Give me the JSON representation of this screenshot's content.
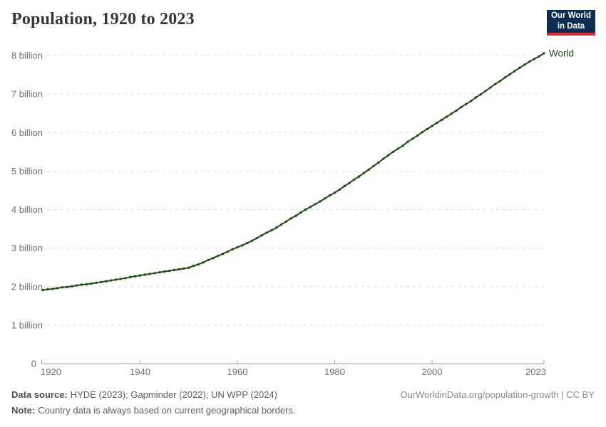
{
  "header": {
    "title": "Population, 1920 to 2023"
  },
  "logo": {
    "line1": "Our World",
    "line2": "in Data",
    "bg_color": "#0d2d55",
    "accent_color": "#dc2e32"
  },
  "chart_data": {
    "type": "line",
    "title": "Population, 1920 to 2023",
    "entity_label": "World",
    "line_color": "#1f4f15",
    "grid": true,
    "legend_position": "end-of-line",
    "xlim": [
      1920,
      2023
    ],
    "ylim": [
      0,
      8.6
    ],
    "x_ticks": [
      1920,
      1940,
      1960,
      1980,
      2000,
      2023
    ],
    "y_ticks": [
      {
        "value": 0,
        "label": "0"
      },
      {
        "value": 1,
        "label": "1 billion"
      },
      {
        "value": 2,
        "label": "2 billion"
      },
      {
        "value": 3,
        "label": "3 billion"
      },
      {
        "value": 4,
        "label": "4 billion"
      },
      {
        "value": 5,
        "label": "5 billion"
      },
      {
        "value": 6,
        "label": "6 billion"
      },
      {
        "value": 7,
        "label": "7 billion"
      },
      {
        "value": 8,
        "label": "8 billion"
      }
    ],
    "ylabel": "",
    "xlabel": "",
    "years": [
      1920,
      1921,
      1922,
      1923,
      1924,
      1925,
      1926,
      1927,
      1928,
      1929,
      1930,
      1931,
      1932,
      1933,
      1934,
      1935,
      1936,
      1937,
      1938,
      1939,
      1940,
      1941,
      1942,
      1943,
      1944,
      1945,
      1946,
      1947,
      1948,
      1949,
      1950,
      1951,
      1952,
      1953,
      1954,
      1955,
      1956,
      1957,
      1958,
      1959,
      1960,
      1961,
      1962,
      1963,
      1964,
      1965,
      1966,
      1967,
      1968,
      1969,
      1970,
      1971,
      1972,
      1973,
      1974,
      1975,
      1976,
      1977,
      1978,
      1979,
      1980,
      1981,
      1982,
      1983,
      1984,
      1985,
      1986,
      1987,
      1988,
      1989,
      1990,
      1991,
      1992,
      1993,
      1994,
      1995,
      1996,
      1997,
      1998,
      1999,
      2000,
      2001,
      2002,
      2003,
      2004,
      2005,
      2006,
      2007,
      2008,
      2009,
      2010,
      2011,
      2012,
      2013,
      2014,
      2015,
      2016,
      2017,
      2018,
      2019,
      2020,
      2021,
      2022,
      2023
    ],
    "values_billions": [
      1.91,
      1.93,
      1.94,
      1.96,
      1.98,
      1.99,
      2.01,
      2.03,
      2.05,
      2.06,
      2.08,
      2.1,
      2.12,
      2.14,
      2.16,
      2.18,
      2.2,
      2.22,
      2.25,
      2.27,
      2.29,
      2.31,
      2.33,
      2.35,
      2.37,
      2.39,
      2.41,
      2.43,
      2.45,
      2.47,
      2.49,
      2.54,
      2.58,
      2.63,
      2.69,
      2.74,
      2.8,
      2.85,
      2.91,
      2.97,
      3.02,
      3.07,
      3.13,
      3.19,
      3.26,
      3.33,
      3.4,
      3.46,
      3.53,
      3.61,
      3.69,
      3.77,
      3.84,
      3.92,
      4.0,
      4.07,
      4.14,
      4.21,
      4.29,
      4.37,
      4.44,
      4.52,
      4.61,
      4.69,
      4.78,
      4.86,
      4.95,
      5.04,
      5.13,
      5.22,
      5.32,
      5.41,
      5.5,
      5.58,
      5.66,
      5.76,
      5.84,
      5.92,
      6.01,
      6.09,
      6.17,
      6.25,
      6.33,
      6.41,
      6.49,
      6.57,
      6.66,
      6.74,
      6.82,
      6.91,
      6.99,
      7.08,
      7.17,
      7.26,
      7.34,
      7.43,
      7.51,
      7.6,
      7.68,
      7.76,
      7.84,
      7.91,
      7.98,
      8.06
    ]
  },
  "footer": {
    "datasource_label": "Data source:",
    "datasource_text": "HYDE (2023); Gapminder (2022); UN WPP (2024)",
    "note_label": "Note:",
    "note_text": "Country data is always based on current geographical borders.",
    "citation": "OurWorldinData.org/population-growth | CC BY"
  }
}
